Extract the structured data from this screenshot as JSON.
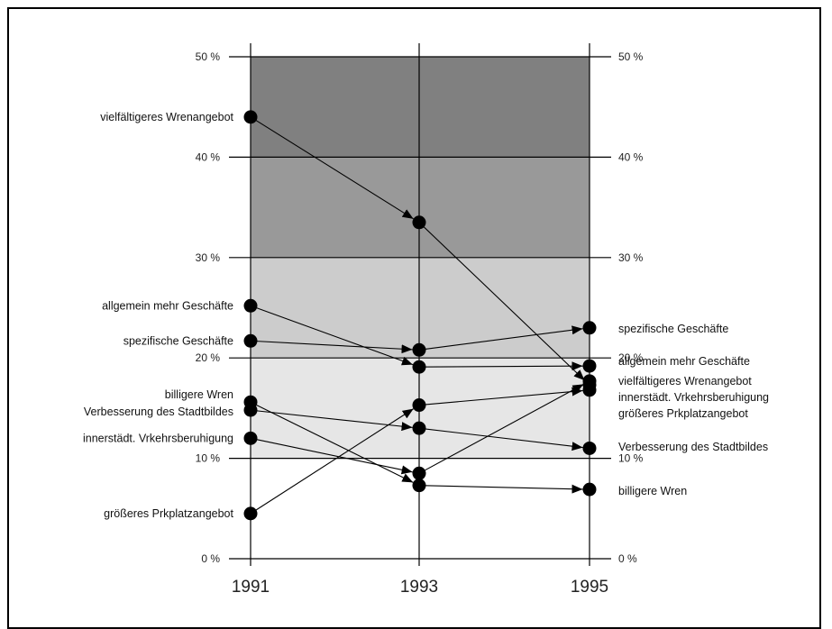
{
  "chart_data": {
    "type": "line",
    "title": "",
    "xlabel": "",
    "ylabel": "",
    "x": [
      "1991",
      "1993",
      "1995"
    ],
    "ylim": [
      0,
      50
    ],
    "yticks": [
      "0 %",
      "10 %",
      "20 %",
      "30 %",
      "40 %",
      "50 %"
    ],
    "bands": [
      {
        "from": 40,
        "to": 50,
        "color": "#808080"
      },
      {
        "from": 30,
        "to": 40,
        "color": "#999999"
      },
      {
        "from": 20,
        "to": 30,
        "color": "#cccccc"
      },
      {
        "from": 10,
        "to": 20,
        "color": "#e6e6e6"
      }
    ],
    "series": [
      {
        "name": "vielfältigeres Wrenangebot",
        "label_left": "vielfältigeres Wrenangebot",
        "label_right": "vielfältigeres Wrenangebot",
        "values": [
          44.0,
          33.5,
          17.3
        ]
      },
      {
        "name": "allgemein mehr Geschäfte",
        "label_left": "allgemein mehr Geschäfte",
        "label_right": "allgemein mehr Geschäfte",
        "values": [
          25.2,
          19.1,
          19.2
        ]
      },
      {
        "name": "spezifische Geschäfte",
        "label_left": "spezifische Geschäfte",
        "label_right": "spezifische Geschäfte",
        "values": [
          21.7,
          20.8,
          23.0
        ]
      },
      {
        "name": "billigere Wren",
        "label_left": "billigere Wren",
        "label_right": "billigere Wren",
        "values": [
          15.6,
          7.3,
          6.9
        ]
      },
      {
        "name": "Verbesserung des Stadtbildes",
        "label_left": "Verbesserung des Stadtbildes",
        "label_right": "Verbesserung des Stadtbildes",
        "values": [
          14.8,
          13.0,
          11.0
        ]
      },
      {
        "name": "innerstädt. Vrkehrsberuhigung",
        "label_left": "innerstädt. Vrkehrsberuhigung",
        "label_right": "innerstädt. Vrkehrsberuhigung",
        "values": [
          12.0,
          8.5,
          17.7
        ]
      },
      {
        "name": "größeres Prkplatzangebot",
        "label_left": "größeres Prkplatzangebot",
        "label_right": "größeres Prkplatzangebot",
        "values": [
          4.5,
          15.3,
          16.8
        ]
      }
    ],
    "colors": {
      "line": "#000000",
      "marker": "#000000"
    },
    "grid": true
  }
}
